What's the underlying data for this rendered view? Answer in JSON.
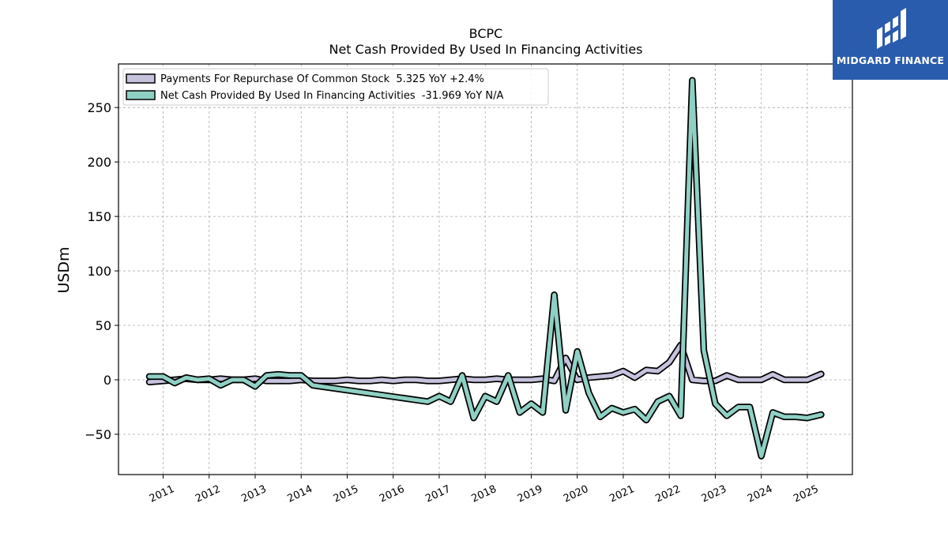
{
  "brand": {
    "name": "MIDGARD FINANCE",
    "logo_icon": "midgard-finance-logo-icon",
    "color": "#2a5cad"
  },
  "chart_data": {
    "type": "line",
    "title": "BCPC",
    "subtitle": "Net Cash Provided By Used In Financing Activities",
    "ylabel": "USDm",
    "xlabel": "",
    "ylim": [
      -87,
      290
    ],
    "xlim": [
      2010.03,
      2025.98
    ],
    "yticks": [
      -50,
      0,
      50,
      100,
      150,
      200,
      250
    ],
    "ytick_labels": [
      "−50",
      "0",
      "50",
      "100",
      "150",
      "200",
      "250"
    ],
    "xticks": [
      "2011",
      "2012",
      "2013",
      "2014",
      "2015",
      "2016",
      "2017",
      "2018",
      "2019",
      "2020",
      "2021",
      "2022",
      "2023",
      "2024",
      "2025"
    ],
    "grid": true,
    "legend_position": "top-left",
    "series": [
      {
        "name": "Payments For Repurchase Of Common Stock  5.325 YoY +2.4%",
        "color": "#c5c2dd",
        "x": [
          2010.7,
          2011.0,
          2011.25,
          2011.5,
          2011.75,
          2012.0,
          2012.25,
          2012.5,
          2012.75,
          2013.0,
          2013.25,
          2013.5,
          2013.75,
          2014.0,
          2014.25,
          2014.5,
          2014.75,
          2015.0,
          2015.25,
          2015.5,
          2015.75,
          2016.0,
          2016.25,
          2016.5,
          2016.75,
          2017.0,
          2017.25,
          2017.5,
          2017.75,
          2018.0,
          2018.25,
          2018.5,
          2018.75,
          2019.0,
          2019.25,
          2019.5,
          2019.75,
          2020.0,
          2020.25,
          2020.5,
          2020.75,
          2021.0,
          2021.25,
          2021.5,
          2021.75,
          2022.0,
          2022.25,
          2022.5,
          2022.75,
          2023.0,
          2023.25,
          2023.5,
          2023.75,
          2024.0,
          2024.25,
          2024.5,
          2024.75,
          2025.0,
          2025.3
        ],
        "values": [
          -2,
          -1,
          0,
          1,
          0,
          0,
          1,
          0,
          0,
          1,
          -1,
          -1,
          -1,
          0,
          -1,
          -1,
          -1,
          0,
          -1,
          -1,
          0,
          -1,
          0,
          0,
          -1,
          -1,
          0,
          1,
          0,
          0,
          1,
          0,
          0,
          0,
          1,
          -1,
          20,
          0,
          2,
          3,
          4,
          8,
          2,
          9,
          8,
          16,
          32,
          0,
          -1,
          -1,
          4,
          0,
          0,
          0,
          5,
          0,
          0,
          0,
          5.325
        ]
      },
      {
        "name": "Net Cash Provided By Used In Financing Activities  -31.969 YoY N/A",
        "color": "#8fd0c4",
        "x": [
          2010.7,
          2011.0,
          2011.25,
          2011.5,
          2011.75,
          2012.0,
          2012.25,
          2012.5,
          2012.75,
          2013.0,
          2013.25,
          2013.5,
          2013.75,
          2014.0,
          2014.25,
          2016.75,
          2017.0,
          2017.25,
          2017.5,
          2017.75,
          2018.0,
          2018.25,
          2018.5,
          2018.75,
          2019.0,
          2019.25,
          2019.5,
          2019.75,
          2020.0,
          2020.25,
          2020.5,
          2020.75,
          2021.0,
          2021.25,
          2021.5,
          2021.75,
          2022.0,
          2022.25,
          2022.5,
          2022.75,
          2023.0,
          2023.25,
          2023.5,
          2023.75,
          2024.0,
          2024.25,
          2024.5,
          2024.75,
          2025.0,
          2025.3
        ],
        "values": [
          3,
          3,
          -3,
          2,
          0,
          1,
          -5,
          0,
          0,
          -6,
          4,
          5,
          4,
          4,
          -5,
          -20,
          -15,
          -20,
          4,
          -35,
          -15,
          -20,
          4,
          -30,
          -22,
          -30,
          78,
          -28,
          26,
          -12,
          -34,
          -26,
          -30,
          -27,
          -37,
          -20,
          -15,
          -33,
          275,
          27,
          -22,
          -33,
          -25,
          -25,
          -70,
          -30,
          -34,
          -34,
          -35,
          -31.969
        ]
      }
    ]
  }
}
